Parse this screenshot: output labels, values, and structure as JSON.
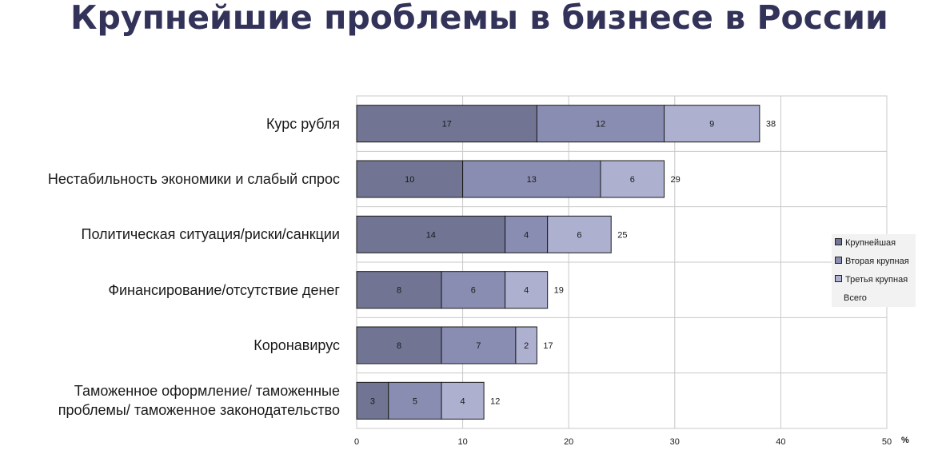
{
  "title": "Крупнейшие проблемы в бизнесе в России",
  "legend": [
    {
      "label": "Крупнейшая",
      "color": "#717593"
    },
    {
      "label": "Вторая крупная",
      "color": "#8a8db2"
    },
    {
      "label": "Третья крупная",
      "color": "#aeb0d0"
    },
    {
      "label": "Всего",
      "color": null
    }
  ],
  "chart_data": {
    "type": "bar",
    "orientation": "horizontal",
    "stacked": true,
    "title": "Крупнейшие проблемы в бизнесе в России",
    "xlabel": "%",
    "xlim": [
      0,
      50
    ],
    "xticks": [
      0,
      10,
      20,
      30,
      40,
      50
    ],
    "grid": true,
    "legend_position": "right",
    "categories": [
      "Курс рубля",
      "Нестабильность экономики и слабый спрос",
      "Политическая ситуация/риски/санкции",
      "Финансирование/отсутствие денег",
      "Коронавирус",
      "Таможенное оформление/ таможенные проблемы/ таможенное законодательство"
    ],
    "series": [
      {
        "name": "Крупнейшая",
        "values": [
          17,
          10,
          14,
          8,
          8,
          3
        ],
        "labels": [
          "17",
          "10",
          "14",
          "8",
          "8",
          "3"
        ]
      },
      {
        "name": "Вторая крупная",
        "values": [
          12,
          13,
          4,
          6,
          7,
          5
        ],
        "labels": [
          "12",
          "13",
          "4",
          "6",
          "7",
          "5"
        ]
      },
      {
        "name": "Третья крупная",
        "values": [
          9,
          6,
          6,
          4,
          2,
          4
        ],
        "labels": [
          "9",
          "6",
          "6",
          "4",
          "2",
          "4"
        ]
      }
    ],
    "totals": [
      38,
      29,
      25,
      19,
      17,
      12
    ],
    "total_labels": [
      "38",
      "29",
      "25",
      "19",
      "17",
      "12"
    ],
    "category_lines": [
      [
        "Курс рубля"
      ],
      [
        "Нестабильность экономики и слабый спрос"
      ],
      [
        "Политическая ситуация/риски/санкции"
      ],
      [
        "Финансирование/отсутствие денег"
      ],
      [
        "Коронавирус"
      ],
      [
        "Таможенное оформление/ таможенные",
        "проблемы/ таможенное законодательство"
      ]
    ]
  }
}
